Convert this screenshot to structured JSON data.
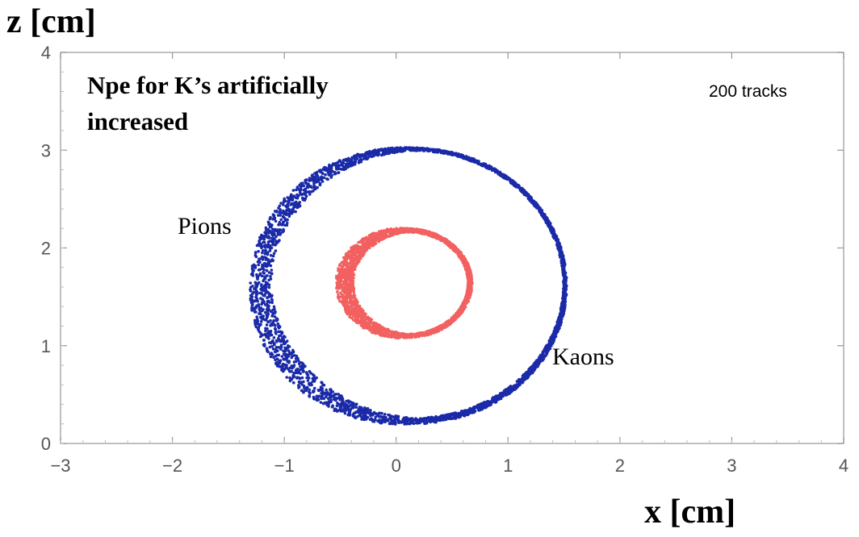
{
  "chart_data": {
    "type": "scatter",
    "xlabel": "x [cm]",
    "ylabel": "z [cm]",
    "xlim": [
      -3,
      4
    ],
    "ylim": [
      0,
      4
    ],
    "x_ticks": [
      "−3",
      "−2",
      "−1",
      "0",
      "1",
      "2",
      "3",
      "4"
    ],
    "y_ticks": [
      "0",
      "1",
      "2",
      "3",
      "4"
    ],
    "grid": false,
    "annotations": {
      "heading_line1": "Npe for K’s artificially",
      "heading_line2": "increased",
      "tracks": "200 tracks",
      "pions": "Pions",
      "kaons": "Kaons"
    },
    "series": [
      {
        "color": "#1a2aa8",
        "shape": "ellipse-ring",
        "center": [
          0.15,
          1.62
        ],
        "radius_x": 1.36,
        "radius_z": 1.39,
        "ring_points_sample": [
          [
            0.15,
            3.01
          ],
          [
            0.85,
            2.82
          ],
          [
            1.35,
            2.25
          ],
          [
            1.51,
            1.62
          ],
          [
            1.35,
            0.95
          ],
          [
            0.85,
            0.45
          ],
          [
            0.15,
            0.23
          ],
          [
            -0.55,
            0.38
          ],
          [
            -1.1,
            0.9
          ],
          [
            -1.3,
            1.62
          ],
          [
            -1.1,
            2.35
          ],
          [
            -0.55,
            2.82
          ]
        ]
      },
      {
        "color": "#f26060",
        "shape": "ellipse-ring",
        "center": [
          0.1,
          1.64
        ],
        "radius_x": 0.56,
        "radius_z": 0.54,
        "ring_points_sample": [
          [
            0.1,
            2.18
          ],
          [
            0.5,
            2.0
          ],
          [
            0.66,
            1.64
          ],
          [
            0.5,
            1.28
          ],
          [
            0.1,
            1.1
          ],
          [
            -0.3,
            1.25
          ],
          [
            -0.46,
            1.64
          ],
          [
            -0.3,
            2.02
          ]
        ]
      }
    ]
  }
}
